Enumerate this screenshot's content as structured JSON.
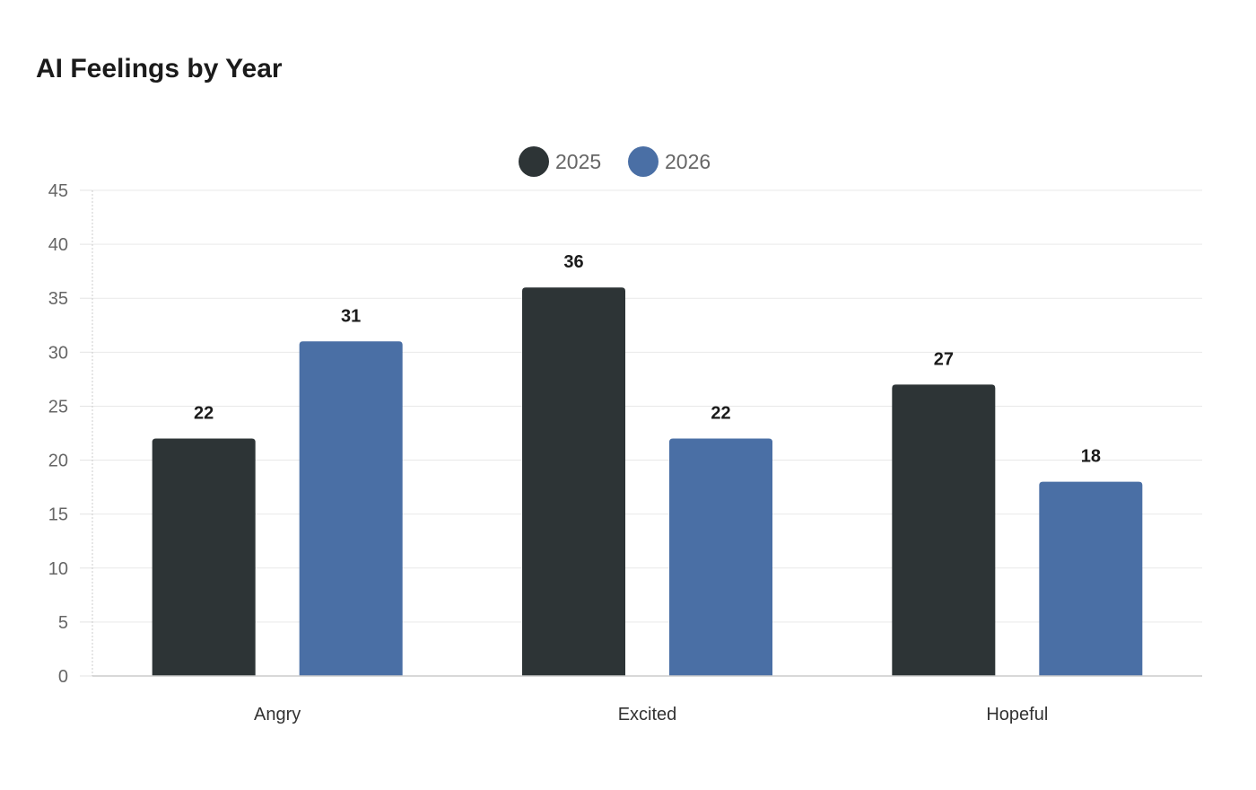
{
  "chart_data": {
    "type": "bar",
    "title": "AI Feelings by Year",
    "categories": [
      "Angry",
      "Excited",
      "Hopeful"
    ],
    "series": [
      {
        "name": "2025",
        "values": [
          22,
          36,
          27
        ],
        "color": "#2d3436"
      },
      {
        "name": "2026",
        "values": [
          31,
          22,
          18
        ],
        "color": "#4a6fa5"
      }
    ],
    "ylim": [
      0,
      45
    ],
    "yticks": [
      0,
      5,
      10,
      15,
      20,
      25,
      30,
      35,
      40,
      45
    ],
    "xlabel": "",
    "ylabel": "",
    "grid": true,
    "legend_position": "top-center",
    "data_labels": true
  }
}
